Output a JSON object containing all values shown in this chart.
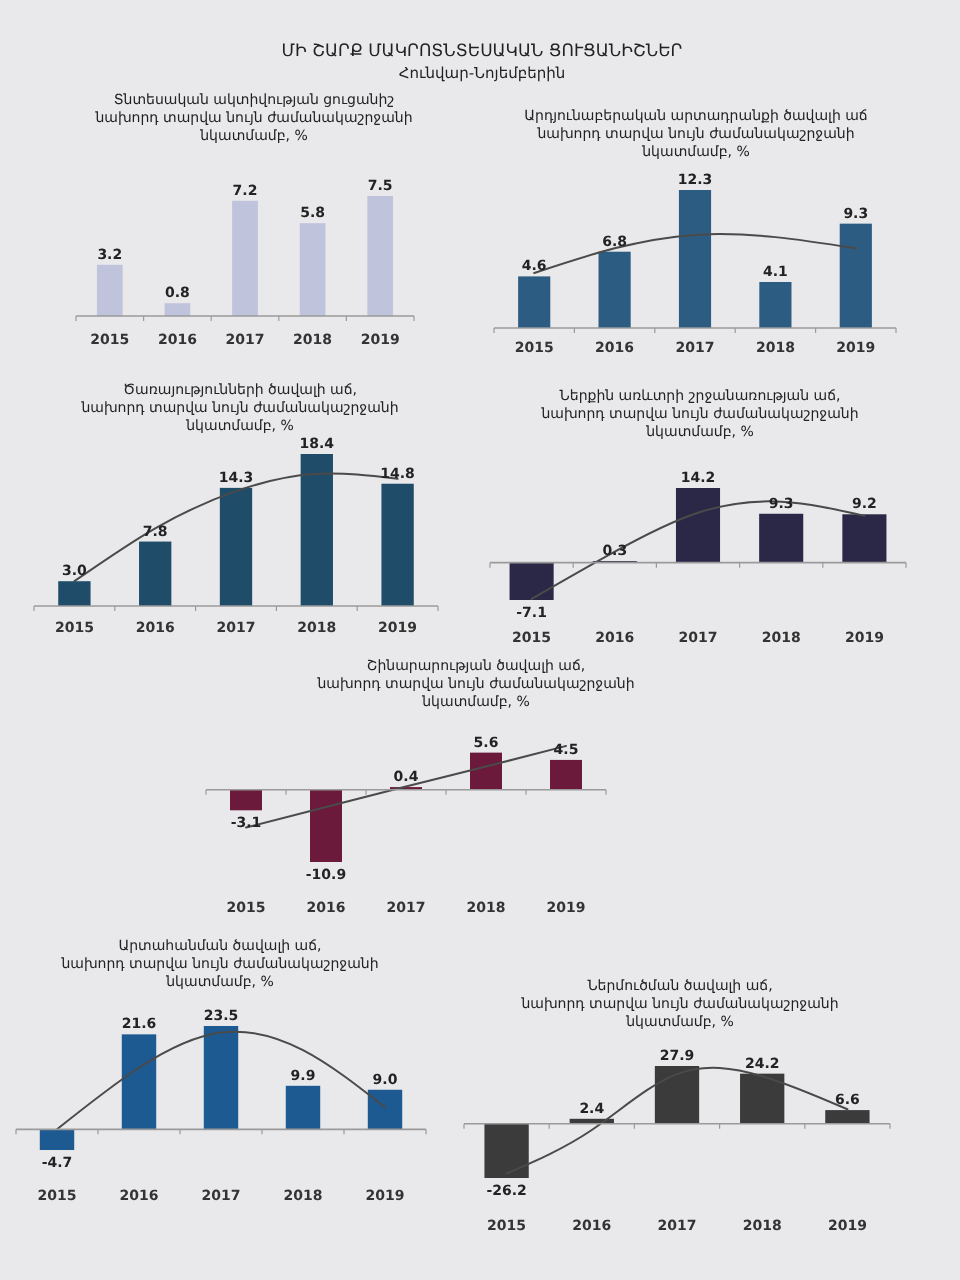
{
  "chart_data": [
    {
      "type": "other",
      "title": "ՄԻ ՇԱՐՔ ՄԱԿՐՈՏՆՏԵՍԱԿԱՆ ՑՈՒՑԱՆԻՇՆԵՐ",
      "subtitle": "Հունվար-Նոյեմբերին"
    },
    {
      "type": "bar",
      "title": "Տնտեսական ակտիվության ցուցանիշ\nնախորդ տարվա նույն ժամանակաշրջանի\nնկատմամբ, %",
      "categories": [
        "2015",
        "2016",
        "2017",
        "2018",
        "2019"
      ],
      "tick_labels": "x",
      "series": [
        {
          "color": "#bfc3dc",
          "values": [
            3.2,
            0.8,
            7.2,
            5.8,
            7.5
          ],
          "value_labels": [
            "3.2",
            "0.8",
            "7.2",
            "5.8",
            "7.5"
          ]
        }
      ]
    },
    {
      "type": "bar",
      "title": "Արդյունաբերական արտադրանքի ծավալի աճ\nնախորդ տարվա նույն ժամանակաշրջանի\nնկատմամբ, %",
      "categories": [
        "2015",
        "2016",
        "2017",
        "2018",
        "2019"
      ],
      "tick_labels": "x",
      "series": [
        {
          "color": "#2d5c82",
          "values": [
            4.6,
            6.8,
            12.3,
            4.1,
            9.3
          ],
          "value_labels": [
            "4.6",
            "6.8",
            "12.3",
            "4.1",
            "9.3"
          ]
        },
        {
          "type": "line",
          "color": "#4a4a4a",
          "values": [
            4.9,
            7.1,
            8.3,
            8.1,
            7.1
          ]
        }
      ]
    },
    {
      "type": "bar",
      "title": "Ծառայությունների ծավալի աճ,\nնախորդ տարվա նույն ժամանակաշրջանի\nնկատմամբ, %",
      "categories": [
        "2015",
        "2016",
        "2017",
        "2018",
        "2019"
      ],
      "tick_labels": "x",
      "series": [
        {
          "color": "#1f4d69",
          "values": [
            3.0,
            7.8,
            14.3,
            18.4,
            14.8
          ],
          "value_labels": [
            "3.0",
            "7.8",
            "14.3",
            "18.4",
            "14.8"
          ]
        },
        {
          "type": "line",
          "color": "#4a4a4a",
          "values": [
            3.0,
            9.4,
            13.9,
            16.0,
            15.4
          ]
        }
      ]
    },
    {
      "type": "bar",
      "title": "Ներքին առևտրի շրջանառության աճ,\nնախորդ տարվա նույն ժամանակաշրջանի\nնկատմամբ, %",
      "categories": [
        "2015",
        "2016",
        "2017",
        "2018",
        "2019"
      ],
      "tick_labels": "x",
      "series": [
        {
          "color": "#2a2846",
          "values": [
            -7.1,
            0.3,
            14.2,
            9.3,
            9.2
          ],
          "value_labels": [
            "-7.1",
            "0.3",
            "14.2",
            "9.3",
            "9.2"
          ]
        },
        {
          "type": "line",
          "color": "#4a4a4a",
          "values": [
            -6.9,
            2.1,
            9.5,
            11.6,
            8.9
          ]
        }
      ]
    },
    {
      "type": "bar",
      "title": "Շինարարության ծավալի աճ,\nնախորդ տարվա նույն ժամանակաշրջանի\nնկատմամբ, %",
      "categories": [
        "2015",
        "2016",
        "2017",
        "2018",
        "2019"
      ],
      "tick_labels": "x",
      "series": [
        {
          "color": "#6b1a3b",
          "values": [
            -3.1,
            -10.9,
            0.4,
            5.6,
            4.5
          ],
          "value_labels": [
            "-3.1",
            "-10.9",
            "0.4",
            "5.6",
            "4.5"
          ]
        },
        {
          "type": "line",
          "color": "#4a4a4a",
          "values": [
            -5.7,
            -2.6,
            0.5,
            3.5,
            6.6
          ]
        }
      ]
    },
    {
      "type": "bar",
      "title": "Արտահանման ծավալի աճ,\nնախորդ տարվա նույն ժամանակաշրջանի\nնկատմամբ, %",
      "categories": [
        "2015",
        "2016",
        "2017",
        "2018",
        "2019"
      ],
      "tick_labels": "x",
      "series": [
        {
          "color": "#1d5a92",
          "values": [
            -4.7,
            21.6,
            23.5,
            9.9,
            9.0
          ],
          "value_labels": [
            "-4.7",
            "21.6",
            "23.5",
            "9.9",
            "9.0"
          ]
        },
        {
          "type": "line",
          "color": "#4a4a4a",
          "values": [
            0,
            14,
            22,
            18,
            5
          ]
        }
      ]
    },
    {
      "type": "bar",
      "title": "Ներմուծման ծավալի աճ,\nնախորդ տարվա նույն ժամանակաշրջանի\nնկատմամբ, %",
      "categories": [
        "2015",
        "2016",
        "2017",
        "2018",
        "2019"
      ],
      "tick_labels": "x",
      "series": [
        {
          "color": "#3b3b3b",
          "values": [
            -26.2,
            2.4,
            27.9,
            24.2,
            6.6
          ],
          "value_labels": [
            "-26.2",
            "2.4",
            "27.9",
            "24.2",
            "6.6"
          ]
        },
        {
          "type": "line",
          "color": "#4a4a4a",
          "values": [
            -24,
            -3,
            24,
            23,
            7
          ]
        }
      ]
    }
  ]
}
